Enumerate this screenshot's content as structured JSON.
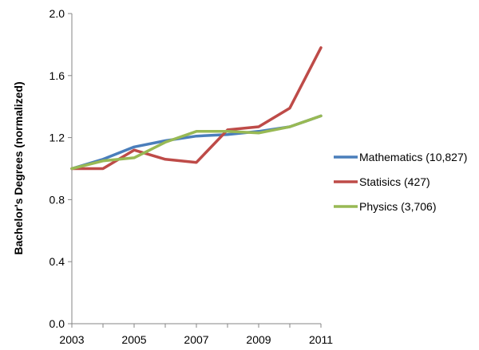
{
  "chart_data": {
    "type": "line",
    "title": "",
    "xlabel": "",
    "ylabel": "Bachelor's Degrees (normalized)",
    "x": [
      2003,
      2004,
      2005,
      2006,
      2007,
      2008,
      2009,
      2010,
      2011
    ],
    "x_tick_labels": [
      "2003",
      "2005",
      "2007",
      "2009",
      "2011"
    ],
    "y_tick_labels": [
      "0.0",
      "0.4",
      "0.8",
      "1.2",
      "1.6",
      "2.0"
    ],
    "ylim": [
      0,
      2.0
    ],
    "xlim": [
      2003,
      2011
    ],
    "grid": false,
    "legend_position": "right",
    "series": [
      {
        "name": "Mathematics (10,827)",
        "color": "#4a7ebb",
        "values": [
          1.0,
          1.06,
          1.14,
          1.18,
          1.21,
          1.22,
          1.24,
          1.27,
          1.34
        ]
      },
      {
        "name": "Statisics (427)",
        "color": "#be4b48",
        "values": [
          1.0,
          1.0,
          1.12,
          1.06,
          1.04,
          1.25,
          1.27,
          1.39,
          1.78
        ]
      },
      {
        "name": "Physics (3,706)",
        "color": "#98b954",
        "values": [
          1.0,
          1.05,
          1.07,
          1.17,
          1.24,
          1.24,
          1.23,
          1.27,
          1.34
        ]
      }
    ]
  }
}
